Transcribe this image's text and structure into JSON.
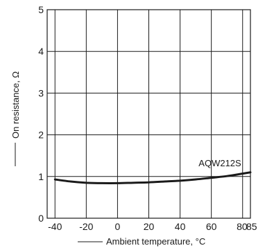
{
  "chart_data": {
    "type": "line",
    "title": "",
    "xlabel": "Ambient temperature, °C",
    "ylabel": "On resistance, Ω",
    "xlim": [
      -45,
      85
    ],
    "ylim": [
      0,
      5
    ],
    "x_ticks": [
      -40,
      -20,
      0,
      20,
      40,
      60,
      80,
      85
    ],
    "x_tick_labels": [
      "-40",
      "-20",
      "0",
      "20",
      "40",
      "60",
      "80",
      "85"
    ],
    "y_ticks": [
      0,
      1,
      2,
      3,
      4,
      5
    ],
    "y_tick_labels": [
      "0",
      "1",
      "2",
      "3",
      "4",
      "5"
    ],
    "x_grid": [
      -40,
      -20,
      0,
      20,
      40,
      60,
      80
    ],
    "y_grid": [
      1,
      2,
      3,
      4
    ],
    "grid": true,
    "series": [
      {
        "name": "AQW212S",
        "color": "#1a1a1a",
        "x": [
          -40,
          -30,
          -20,
          -10,
          0,
          10,
          20,
          30,
          40,
          50,
          60,
          70,
          80,
          85
        ],
        "y": [
          0.93,
          0.88,
          0.85,
          0.84,
          0.84,
          0.85,
          0.86,
          0.88,
          0.9,
          0.93,
          0.97,
          1.01,
          1.07,
          1.1
        ]
      }
    ]
  }
}
